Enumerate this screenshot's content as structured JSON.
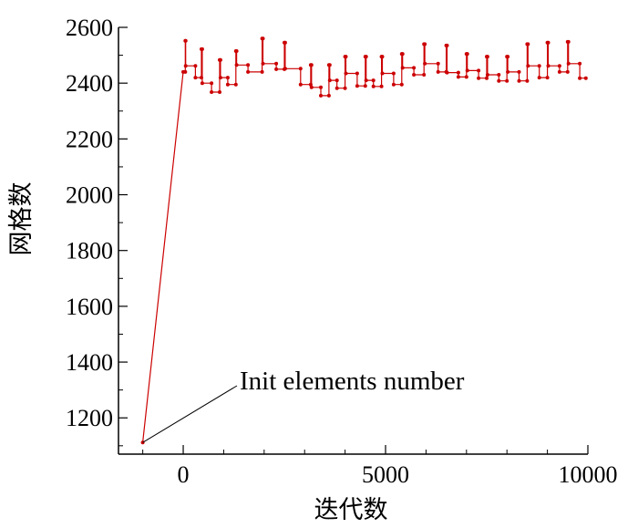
{
  "chart_data": {
    "type": "line",
    "xlabel": "迭代数",
    "ylabel": "网格数",
    "xlim": [
      -1600,
      10000
    ],
    "ylim": [
      1070,
      2600
    ],
    "xticks": [
      0,
      5000,
      10000
    ],
    "yticks": [
      1200,
      1400,
      1600,
      1800,
      2000,
      2200,
      2400,
      2600
    ],
    "xtick_labels": [
      "0",
      "5000",
      "10000"
    ],
    "ytick_labels": [
      "1200",
      "1400",
      "1600",
      "1800",
      "2000",
      "2200",
      "2400",
      "2600"
    ],
    "series_color": "#cc0000",
    "step_style": "step",
    "annotation": {
      "text": "Init elements number",
      "x": -1000,
      "y": 1112
    },
    "series": [
      {
        "points": [
          [
            -1000,
            1112
          ],
          [
            0,
            2440
          ],
          [
            50,
            2440
          ],
          [
            50,
            2552
          ],
          [
            60,
            2552
          ],
          [
            60,
            2462
          ],
          [
            300,
            2462
          ],
          [
            300,
            2420
          ],
          [
            450,
            2420
          ],
          [
            450,
            2522
          ],
          [
            470,
            2522
          ],
          [
            470,
            2400
          ],
          [
            700,
            2400
          ],
          [
            700,
            2368
          ],
          [
            900,
            2368
          ],
          [
            900,
            2483
          ],
          [
            920,
            2483
          ],
          [
            920,
            2420
          ],
          [
            1100,
            2420
          ],
          [
            1100,
            2395
          ],
          [
            1300,
            2395
          ],
          [
            1300,
            2515
          ],
          [
            1320,
            2515
          ],
          [
            1320,
            2465
          ],
          [
            1600,
            2465
          ],
          [
            1600,
            2440
          ],
          [
            1950,
            2440
          ],
          [
            1950,
            2560
          ],
          [
            1970,
            2560
          ],
          [
            1970,
            2470
          ],
          [
            2300,
            2470
          ],
          [
            2300,
            2450
          ],
          [
            2500,
            2450
          ],
          [
            2500,
            2545
          ],
          [
            2520,
            2545
          ],
          [
            2520,
            2452
          ],
          [
            2900,
            2452
          ],
          [
            2900,
            2395
          ],
          [
            3150,
            2395
          ],
          [
            3150,
            2465
          ],
          [
            3170,
            2465
          ],
          [
            3170,
            2385
          ],
          [
            3400,
            2385
          ],
          [
            3400,
            2355
          ],
          [
            3600,
            2355
          ],
          [
            3600,
            2465
          ],
          [
            3620,
            2465
          ],
          [
            3620,
            2410
          ],
          [
            3800,
            2410
          ],
          [
            3800,
            2382
          ],
          [
            4000,
            2382
          ],
          [
            4000,
            2495
          ],
          [
            4020,
            2495
          ],
          [
            4020,
            2435
          ],
          [
            4300,
            2435
          ],
          [
            4300,
            2390
          ],
          [
            4500,
            2390
          ],
          [
            4500,
            2495
          ],
          [
            4520,
            2495
          ],
          [
            4520,
            2410
          ],
          [
            4700,
            2410
          ],
          [
            4700,
            2388
          ],
          [
            4900,
            2388
          ],
          [
            4900,
            2495
          ],
          [
            4920,
            2495
          ],
          [
            4920,
            2435
          ],
          [
            5200,
            2435
          ],
          [
            5200,
            2395
          ],
          [
            5400,
            2395
          ],
          [
            5400,
            2505
          ],
          [
            5420,
            2505
          ],
          [
            5420,
            2455
          ],
          [
            5700,
            2455
          ],
          [
            5700,
            2430
          ],
          [
            5950,
            2430
          ],
          [
            5950,
            2540
          ],
          [
            5970,
            2540
          ],
          [
            5970,
            2470
          ],
          [
            6300,
            2470
          ],
          [
            6300,
            2440
          ],
          [
            6500,
            2440
          ],
          [
            6500,
            2535
          ],
          [
            6520,
            2535
          ],
          [
            6520,
            2438
          ],
          [
            6800,
            2438
          ],
          [
            6800,
            2422
          ],
          [
            7000,
            2422
          ],
          [
            7000,
            2505
          ],
          [
            7020,
            2505
          ],
          [
            7020,
            2445
          ],
          [
            7300,
            2445
          ],
          [
            7300,
            2418
          ],
          [
            7500,
            2418
          ],
          [
            7500,
            2495
          ],
          [
            7520,
            2495
          ],
          [
            7520,
            2430
          ],
          [
            7800,
            2430
          ],
          [
            7800,
            2408
          ],
          [
            8000,
            2408
          ],
          [
            8000,
            2495
          ],
          [
            8020,
            2495
          ],
          [
            8020,
            2440
          ],
          [
            8300,
            2440
          ],
          [
            8300,
            2408
          ],
          [
            8500,
            2408
          ],
          [
            8500,
            2540
          ],
          [
            8520,
            2540
          ],
          [
            8520,
            2462
          ],
          [
            8800,
            2462
          ],
          [
            8800,
            2420
          ],
          [
            9000,
            2420
          ],
          [
            9000,
            2545
          ],
          [
            9020,
            2545
          ],
          [
            9020,
            2462
          ],
          [
            9300,
            2462
          ],
          [
            9300,
            2440
          ],
          [
            9500,
            2440
          ],
          [
            9500,
            2548
          ],
          [
            9520,
            2548
          ],
          [
            9520,
            2470
          ],
          [
            9800,
            2470
          ],
          [
            9800,
            2418
          ],
          [
            9950,
            2418
          ]
        ]
      }
    ]
  }
}
